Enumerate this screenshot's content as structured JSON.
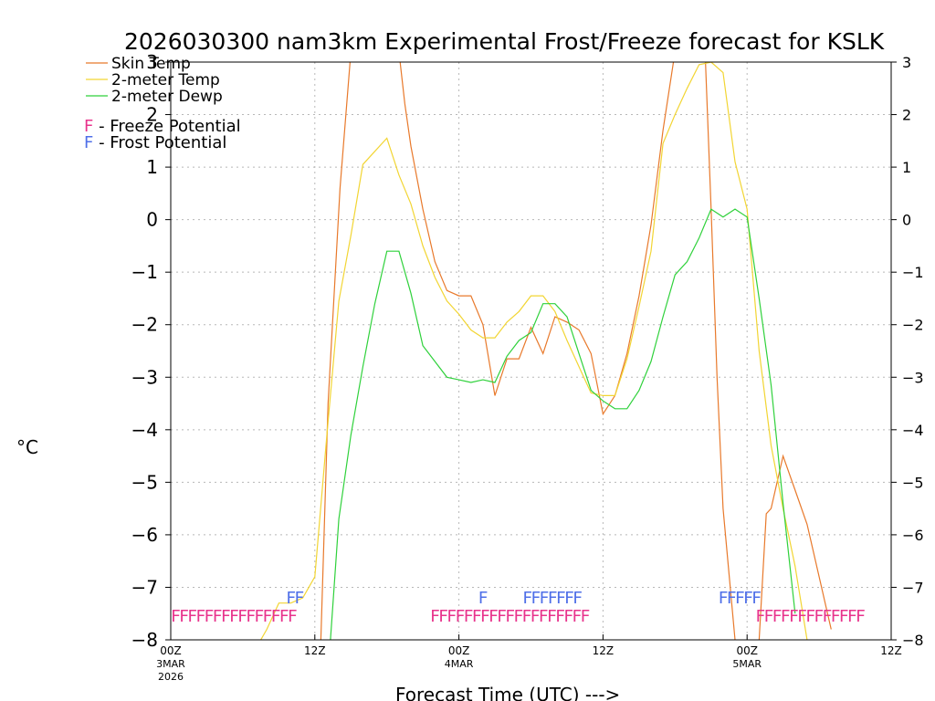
{
  "colors": {
    "skin": "#e8792b",
    "temp": "#f2d533",
    "dewp": "#2fd13b",
    "freeze": "#e8338c",
    "frost": "#4f6fe8",
    "grid": "#b8b8b8",
    "axis": "#000000"
  },
  "chart_data": {
    "type": "line",
    "title": "2026030300 nam3km Experimental Frost/Freeze forecast for KSLK",
    "xlabel": "Forecast Time (UTC) --->",
    "ylabel": "°C",
    "xlim": [
      0,
      60
    ],
    "ylim": [
      -8,
      3
    ],
    "yticks": [
      3,
      2,
      1,
      0,
      -1,
      -2,
      -3,
      -4,
      -5,
      -6,
      -7,
      -8
    ],
    "ytick_labels_left": [
      "3",
      "2",
      "1",
      "0",
      "−1",
      "−2",
      "−3",
      "−4",
      "−5",
      "−6",
      "−7",
      "−8"
    ],
    "ytick_labels_right": [
      "3",
      "2",
      "1",
      "0",
      "−1",
      "−2",
      "−3",
      "−4",
      "−5",
      "−6",
      "−7",
      "−8"
    ],
    "xticks": [
      {
        "x": 0,
        "line1": "00Z",
        "line2": "3MAR",
        "line3": "2026"
      },
      {
        "x": 12,
        "line1": "12Z",
        "line2": "",
        "line3": ""
      },
      {
        "x": 24,
        "line1": "00Z",
        "line2": "4MAR",
        "line3": ""
      },
      {
        "x": 36,
        "line1": "12Z",
        "line2": "",
        "line3": ""
      },
      {
        "x": 48,
        "line1": "00Z",
        "line2": "5MAR",
        "line3": ""
      },
      {
        "x": 60,
        "line1": "12Z",
        "line2": "",
        "line3": ""
      }
    ],
    "legend": [
      {
        "label": "Skin Temp",
        "series": "skin"
      },
      {
        "label": "2-meter Temp",
        "series": "temp"
      },
      {
        "label": "2-meter Dewp",
        "series": "dewp"
      }
    ],
    "marker_legend": [
      {
        "letter": "F",
        "text": " - Freeze Potential",
        "kind": "freeze"
      },
      {
        "letter": "F",
        "text": " - Frost Potential",
        "kind": "frost"
      }
    ],
    "series": [
      {
        "name": "Skin Temp",
        "key": "skin",
        "x": [
          12.5,
          13.1,
          14.1,
          15,
          19,
          19.5,
          20,
          21,
          22,
          23,
          24,
          25,
          26,
          27,
          28,
          29,
          30,
          31,
          32,
          33,
          34,
          35,
          36,
          37,
          38,
          39,
          40,
          41,
          42,
          43,
          44.5,
          45,
          45.5,
          46,
          47,
          47.5,
          48,
          49,
          49.6,
          50,
          51,
          52,
          53,
          54,
          55
        ],
        "y": [
          -8,
          -3.5,
          0.6,
          3.2,
          3.2,
          2.2,
          1.4,
          0.2,
          -0.8,
          -1.35,
          -1.45,
          -1.45,
          -2.0,
          -3.35,
          -2.65,
          -2.65,
          -2.05,
          -2.55,
          -1.85,
          -1.95,
          -2.1,
          -2.55,
          -3.7,
          -3.35,
          -2.55,
          -1.45,
          -0.1,
          1.7,
          3.2,
          3.2,
          3.2,
          0.2,
          -3.0,
          -5.5,
          -8.0,
          -8.2,
          -8.2,
          -8.0,
          -5.6,
          -5.5,
          -4.5,
          -5.15,
          -5.8,
          -6.8,
          -7.8
        ]
      },
      {
        "name": "2-meter Temp",
        "key": "temp",
        "x": [
          7.5,
          8,
          9,
          10,
          11,
          12,
          13,
          14,
          15,
          16,
          17,
          18,
          19,
          20,
          21,
          22,
          23,
          24,
          25,
          26,
          27,
          28,
          29,
          30,
          31,
          32,
          33,
          34,
          35,
          36,
          37,
          38,
          39,
          40,
          41,
          42,
          43,
          44,
          45,
          46,
          47,
          48,
          49,
          50,
          51,
          52,
          53
        ],
        "y": [
          -8.0,
          -7.8,
          -7.3,
          -7.3,
          -7.2,
          -6.8,
          -4.1,
          -1.55,
          -0.3,
          1.05,
          1.3,
          1.55,
          0.85,
          0.3,
          -0.5,
          -1.1,
          -1.55,
          -1.8,
          -2.1,
          -2.25,
          -2.25,
          -1.95,
          -1.75,
          -1.45,
          -1.45,
          -1.75,
          -2.3,
          -2.8,
          -3.3,
          -3.35,
          -3.35,
          -2.65,
          -1.65,
          -0.6,
          1.45,
          2.0,
          2.5,
          2.95,
          3.0,
          2.8,
          1.1,
          0.2,
          -2.5,
          -4.3,
          -5.5,
          -6.6,
          -8.0
        ]
      },
      {
        "name": "2-meter Dewp",
        "key": "dewp",
        "x": [
          13.3,
          14,
          15,
          16,
          17,
          18,
          19,
          20,
          21,
          22,
          23,
          24,
          25,
          26,
          27,
          28,
          29,
          30,
          31,
          32,
          33,
          34,
          35,
          36,
          37,
          38,
          39,
          40,
          41,
          42,
          43,
          44,
          45,
          46,
          47,
          48,
          49,
          50,
          51,
          52
        ],
        "y": [
          -8.0,
          -5.7,
          -4.1,
          -2.8,
          -1.6,
          -0.6,
          -0.6,
          -1.4,
          -2.4,
          -2.7,
          -3.0,
          -3.05,
          -3.1,
          -3.05,
          -3.1,
          -2.6,
          -2.3,
          -2.15,
          -1.6,
          -1.6,
          -1.85,
          -2.55,
          -3.25,
          -3.45,
          -3.6,
          -3.6,
          -3.25,
          -2.7,
          -1.85,
          -1.05,
          -0.8,
          -0.35,
          0.2,
          0.05,
          0.2,
          0.05,
          -1.5,
          -3.15,
          -5.4,
          -7.5
        ]
      }
    ],
    "markers": [
      {
        "kind": "freeze",
        "text": "FFFFFFFFFFFFFFF",
        "x_start": 0,
        "y": -7.5
      },
      {
        "kind": "freeze",
        "text": "FFFFFFFFFFFFFFFFFFF",
        "x_start": 21.6,
        "y": -7.5
      },
      {
        "kind": "freeze",
        "text": "FFFFFFFFFFFFF",
        "x_start": 48.7,
        "y": -7.5
      },
      {
        "kind": "frost",
        "text": "FF",
        "x_start": 9.6,
        "y": -7.15
      },
      {
        "kind": "frost",
        "text": "F",
        "x_start": 25.6,
        "y": -7.15
      },
      {
        "kind": "frost",
        "text": "FFFFFFF",
        "x_start": 29.3,
        "y": -7.15
      },
      {
        "kind": "frost",
        "text": "FFFFF",
        "x_start": 45.6,
        "y": -7.15
      }
    ]
  }
}
